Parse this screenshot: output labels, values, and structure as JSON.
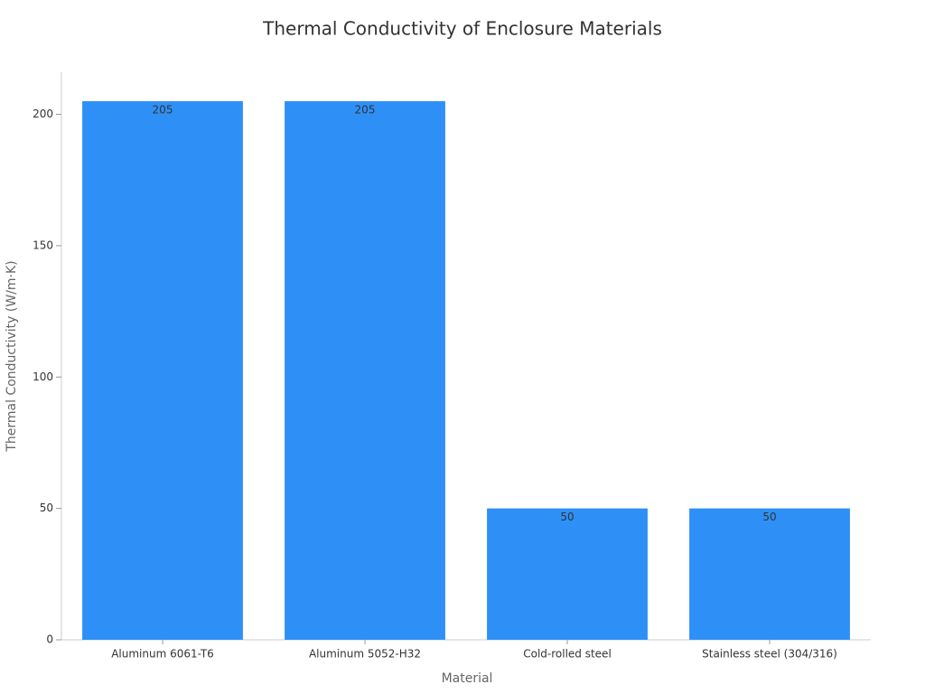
{
  "chart_data": {
    "type": "bar",
    "title": "Thermal Conductivity of Enclosure Materials",
    "x_label": "Material",
    "y_label": "Thermal Conductivity (W/m·K)",
    "categories": [
      "Aluminum 6061-T6",
      "Aluminum 5052-H32",
      "Cold-rolled steel",
      "Stainless steel (304/316)"
    ],
    "values": [
      205,
      205,
      50,
      50
    ],
    "color": "#2e90f7",
    "ylim": [
      0,
      216
    ],
    "yticks": [
      0,
      50,
      100,
      150,
      200
    ],
    "grid": false
  }
}
